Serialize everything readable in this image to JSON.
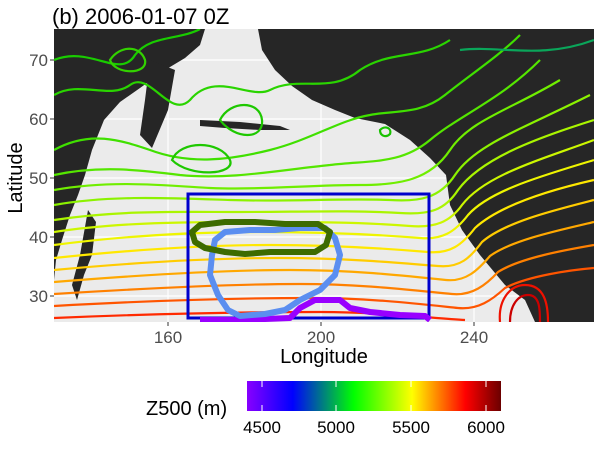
{
  "title": "(b) 2006-01-07 0Z",
  "chart_data": {
    "type": "contour_map",
    "xlabel": "Longitude",
    "ylabel": "Latitude",
    "xlim": [
      130,
      272
    ],
    "ylim": [
      25,
      75
    ],
    "x_ticks": [
      160,
      200,
      240
    ],
    "y_ticks": [
      30,
      40,
      50,
      60,
      70
    ],
    "colorbar": {
      "title": "Z500 (m)",
      "ticks": [
        4500,
        5000,
        5500,
        6000
      ],
      "range": [
        4450,
        6150
      ],
      "colors": [
        "#8800ff",
        "#0000ff",
        "#00ff00",
        "#ffff00",
        "#ff0000",
        "#6b0000"
      ]
    },
    "box": {
      "lon": [
        165,
        227
      ],
      "lat": [
        26,
        47
      ],
      "color": "#0000cc"
    },
    "regions": [
      {
        "name": "green",
        "color": "#3d6b00",
        "approx_lon": [
          170,
          210
        ],
        "approx_lat": [
          37,
          42
        ]
      },
      {
        "name": "blue",
        "color": "#5b8ef0",
        "approx_lon": [
          172,
          205
        ],
        "approx_lat": [
          26,
          41
        ]
      },
      {
        "name": "purple",
        "color": "#9900ff",
        "approx_lon": [
          168,
          228
        ],
        "approx_lat": [
          25.5,
          28
        ]
      }
    ]
  }
}
